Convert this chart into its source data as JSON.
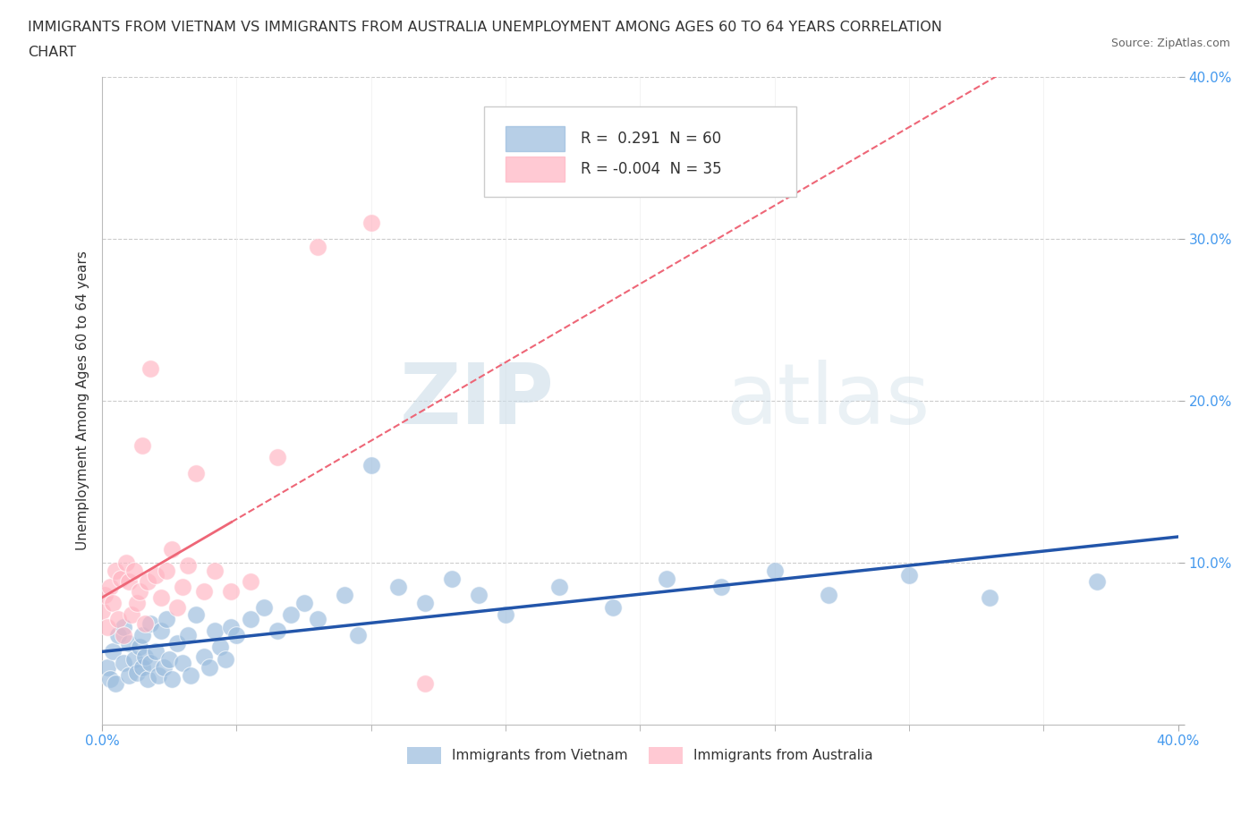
{
  "title_line1": "IMMIGRANTS FROM VIETNAM VS IMMIGRANTS FROM AUSTRALIA UNEMPLOYMENT AMONG AGES 60 TO 64 YEARS CORRELATION",
  "title_line2": "CHART",
  "source": "Source: ZipAtlas.com",
  "ylabel": "Unemployment Among Ages 60 to 64 years",
  "legend_label1": "Immigrants from Vietnam",
  "legend_label2": "Immigrants from Australia",
  "R1": 0.291,
  "N1": 60,
  "R2": -0.004,
  "N2": 35,
  "xlim": [
    0.0,
    0.4
  ],
  "ylim": [
    0.0,
    0.4
  ],
  "xtick_positions": [
    0.0,
    0.4
  ],
  "xtick_labels": [
    "0.0%",
    "40.0%"
  ],
  "ytick_positions": [
    0.0,
    0.1,
    0.2,
    0.3,
    0.4
  ],
  "ytick_labels": [
    "",
    "10.0%",
    "20.0%",
    "30.0%",
    "40.0%"
  ],
  "grid_yticks": [
    0.1,
    0.2,
    0.3,
    0.4
  ],
  "color_vietnam": "#99BBDD",
  "color_australia": "#FFB3C1",
  "color_trendline_vietnam": "#2255AA",
  "color_trendline_australia": "#EE6677",
  "background_color": "#FFFFFF",
  "watermark_zip": "ZIP",
  "watermark_atlas": "atlas",
  "vietnam_x": [
    0.002,
    0.003,
    0.004,
    0.005,
    0.006,
    0.008,
    0.008,
    0.01,
    0.01,
    0.012,
    0.013,
    0.014,
    0.015,
    0.015,
    0.016,
    0.017,
    0.018,
    0.018,
    0.02,
    0.021,
    0.022,
    0.023,
    0.024,
    0.025,
    0.026,
    0.028,
    0.03,
    0.032,
    0.033,
    0.035,
    0.038,
    0.04,
    0.042,
    0.044,
    0.046,
    0.048,
    0.05,
    0.055,
    0.06,
    0.065,
    0.07,
    0.075,
    0.08,
    0.09,
    0.095,
    0.1,
    0.11,
    0.12,
    0.13,
    0.14,
    0.15,
    0.17,
    0.19,
    0.21,
    0.23,
    0.25,
    0.27,
    0.3,
    0.33,
    0.37
  ],
  "vietnam_y": [
    0.035,
    0.028,
    0.045,
    0.025,
    0.055,
    0.038,
    0.06,
    0.03,
    0.05,
    0.04,
    0.032,
    0.048,
    0.035,
    0.055,
    0.042,
    0.028,
    0.062,
    0.038,
    0.045,
    0.03,
    0.058,
    0.035,
    0.065,
    0.04,
    0.028,
    0.05,
    0.038,
    0.055,
    0.03,
    0.068,
    0.042,
    0.035,
    0.058,
    0.048,
    0.04,
    0.06,
    0.055,
    0.065,
    0.072,
    0.058,
    0.068,
    0.075,
    0.065,
    0.08,
    0.055,
    0.16,
    0.085,
    0.075,
    0.09,
    0.08,
    0.068,
    0.085,
    0.072,
    0.09,
    0.085,
    0.095,
    0.08,
    0.092,
    0.078,
    0.088
  ],
  "australia_x": [
    0.0,
    0.001,
    0.002,
    0.003,
    0.004,
    0.005,
    0.006,
    0.007,
    0.008,
    0.009,
    0.01,
    0.011,
    0.012,
    0.013,
    0.014,
    0.015,
    0.016,
    0.017,
    0.018,
    0.02,
    0.022,
    0.024,
    0.026,
    0.028,
    0.03,
    0.032,
    0.035,
    0.038,
    0.042,
    0.048,
    0.055,
    0.065,
    0.08,
    0.1,
    0.12
  ],
  "australia_y": [
    0.07,
    0.08,
    0.06,
    0.085,
    0.075,
    0.095,
    0.065,
    0.09,
    0.055,
    0.1,
    0.088,
    0.068,
    0.095,
    0.075,
    0.082,
    0.172,
    0.062,
    0.088,
    0.22,
    0.092,
    0.078,
    0.095,
    0.108,
    0.072,
    0.085,
    0.098,
    0.155,
    0.082,
    0.095,
    0.082,
    0.088,
    0.165,
    0.295,
    0.31,
    0.025
  ]
}
